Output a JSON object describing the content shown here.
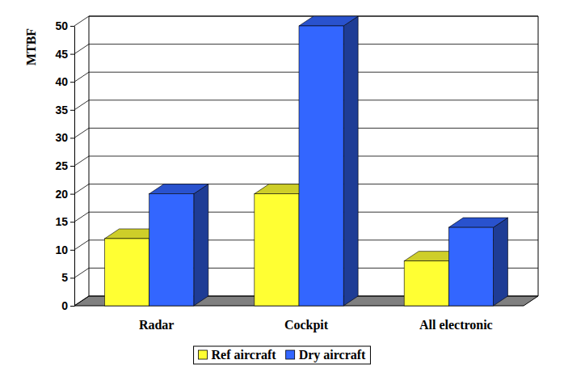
{
  "chart_data": {
    "type": "bar",
    "y_label": "MTBF",
    "categories": [
      "Radar",
      "Cockpit",
      "All electronic"
    ],
    "series": [
      {
        "name": "Ref aircraft",
        "color": "#ffff33",
        "values": [
          12,
          20,
          8
        ]
      },
      {
        "name": "Dry aircraft",
        "color": "#3366ff",
        "values": [
          20,
          50,
          14
        ]
      }
    ],
    "ylim": [
      0,
      50
    ],
    "yticks": [
      0,
      5,
      10,
      15,
      20,
      25,
      30,
      35,
      40,
      45,
      50
    ],
    "grid": true,
    "legend": "bottom"
  }
}
